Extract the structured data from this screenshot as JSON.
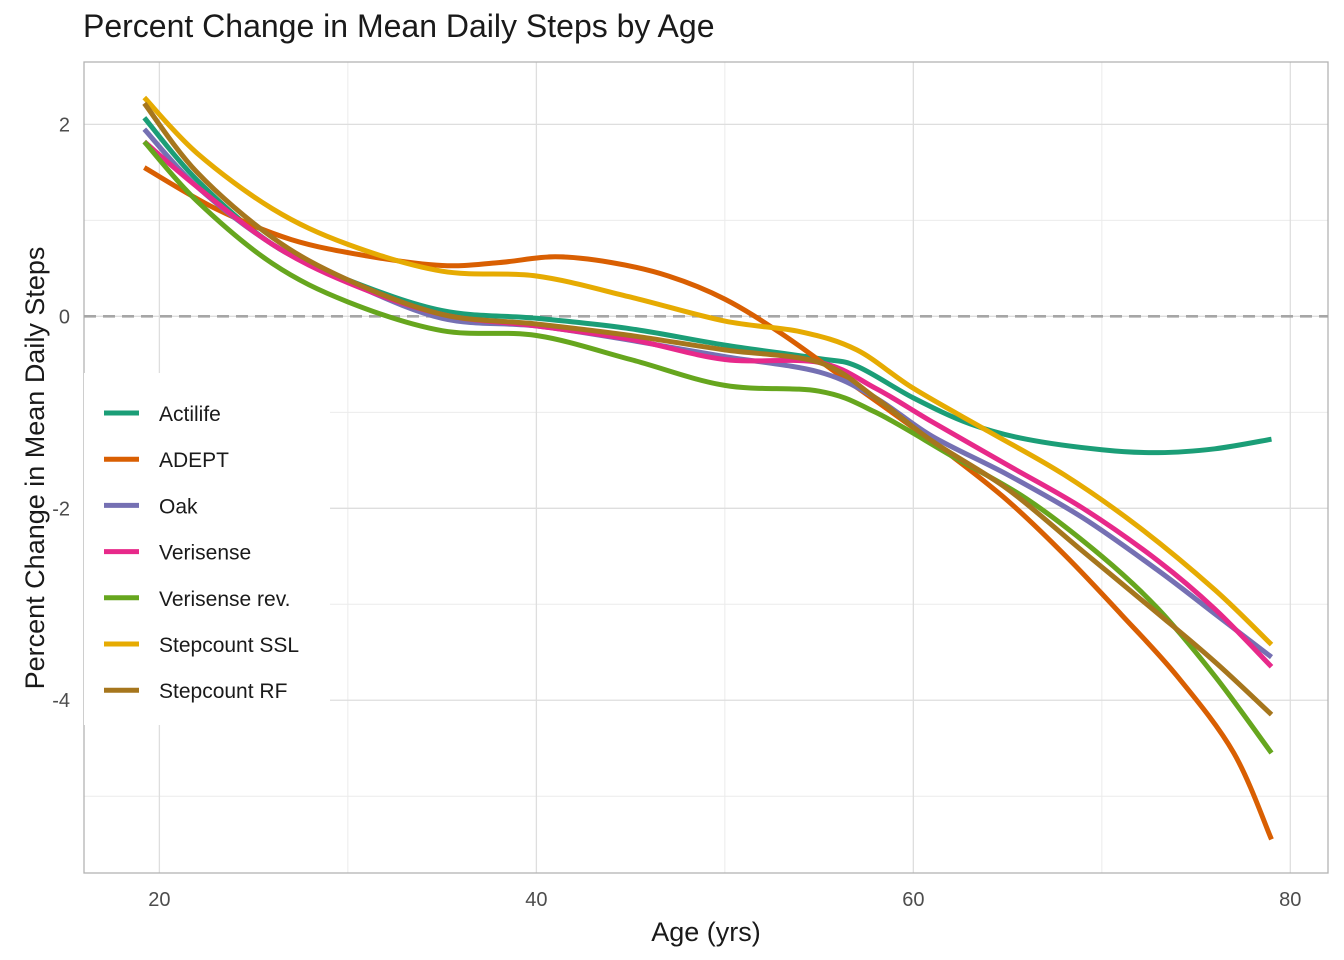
{
  "chart_data": {
    "type": "line",
    "title": "Percent Change in Mean Daily Steps by Age",
    "xlabel": "Age (yrs)",
    "ylabel": "Percent Change in Mean Daily Steps",
    "xlim": [
      16,
      82
    ],
    "ylim": [
      -5.8,
      2.65
    ],
    "x_ticks": [
      20,
      40,
      60,
      80
    ],
    "y_ticks": [
      -4,
      -2,
      0,
      2
    ],
    "grid": true,
    "reference_line": {
      "y": 0,
      "style": "dashed",
      "color": "#a6a6a6"
    },
    "legend_position": "left-middle",
    "series": [
      {
        "name": "Actilife",
        "color": "#1b9e77",
        "points": [
          [
            19.2,
            2.07
          ],
          [
            22,
            1.42
          ],
          [
            26,
            0.75
          ],
          [
            30,
            0.38
          ],
          [
            35,
            0.06
          ],
          [
            40,
            -0.02
          ],
          [
            45,
            -0.13
          ],
          [
            50,
            -0.3
          ],
          [
            55,
            -0.44
          ],
          [
            57,
            -0.52
          ],
          [
            60,
            -0.85
          ],
          [
            63,
            -1.12
          ],
          [
            66,
            -1.28
          ],
          [
            70,
            -1.39
          ],
          [
            73,
            -1.42
          ],
          [
            76,
            -1.38
          ],
          [
            79,
            -1.28
          ]
        ]
      },
      {
        "name": "ADEPT",
        "color": "#d95f02",
        "points": [
          [
            19.2,
            1.55
          ],
          [
            23,
            1.12
          ],
          [
            27,
            0.8
          ],
          [
            31,
            0.63
          ],
          [
            35,
            0.53
          ],
          [
            38,
            0.56
          ],
          [
            41,
            0.62
          ],
          [
            44,
            0.56
          ],
          [
            47,
            0.42
          ],
          [
            50,
            0.18
          ],
          [
            53,
            -0.18
          ],
          [
            56,
            -0.6
          ],
          [
            59,
            -1.02
          ],
          [
            62,
            -1.45
          ],
          [
            65,
            -1.92
          ],
          [
            68,
            -2.48
          ],
          [
            71,
            -3.1
          ],
          [
            74,
            -3.75
          ],
          [
            77,
            -4.55
          ],
          [
            79,
            -5.45
          ]
        ]
      },
      {
        "name": "Oak",
        "color": "#7570b3",
        "points": [
          [
            19.2,
            1.95
          ],
          [
            22,
            1.35
          ],
          [
            26,
            0.75
          ],
          [
            30,
            0.36
          ],
          [
            35,
            -0.02
          ],
          [
            40,
            -0.1
          ],
          [
            45,
            -0.25
          ],
          [
            50,
            -0.42
          ],
          [
            55,
            -0.58
          ],
          [
            58,
            -0.85
          ],
          [
            61,
            -1.25
          ],
          [
            65,
            -1.65
          ],
          [
            69,
            -2.1
          ],
          [
            73,
            -2.65
          ],
          [
            76,
            -3.1
          ],
          [
            79,
            -3.55
          ]
        ]
      },
      {
        "name": "Verisense",
        "color": "#e7298a",
        "points": [
          [
            19.2,
            1.82
          ],
          [
            22,
            1.35
          ],
          [
            26,
            0.75
          ],
          [
            30,
            0.35
          ],
          [
            35,
            0.02
          ],
          [
            40,
            -0.1
          ],
          [
            45,
            -0.24
          ],
          [
            50,
            -0.45
          ],
          [
            55,
            -0.48
          ],
          [
            58,
            -0.75
          ],
          [
            61,
            -1.1
          ],
          [
            65,
            -1.55
          ],
          [
            69,
            -2.0
          ],
          [
            73,
            -2.55
          ],
          [
            76,
            -3.05
          ],
          [
            79,
            -3.65
          ]
        ]
      },
      {
        "name": "Verisense rev.",
        "color": "#66a61e",
        "points": [
          [
            19.2,
            1.82
          ],
          [
            22,
            1.2
          ],
          [
            26,
            0.55
          ],
          [
            30,
            0.15
          ],
          [
            35,
            -0.15
          ],
          [
            40,
            -0.2
          ],
          [
            45,
            -0.45
          ],
          [
            50,
            -0.72
          ],
          [
            55,
            -0.78
          ],
          [
            58,
            -1.0
          ],
          [
            62,
            -1.45
          ],
          [
            66,
            -1.9
          ],
          [
            70,
            -2.5
          ],
          [
            73,
            -3.05
          ],
          [
            76,
            -3.75
          ],
          [
            79,
            -4.55
          ]
        ]
      },
      {
        "name": "Stepcount SSL",
        "color": "#e6ab02",
        "points": [
          [
            19.2,
            2.28
          ],
          [
            22,
            1.7
          ],
          [
            26,
            1.12
          ],
          [
            30,
            0.75
          ],
          [
            35,
            0.47
          ],
          [
            40,
            0.42
          ],
          [
            45,
            0.2
          ],
          [
            50,
            -0.05
          ],
          [
            54,
            -0.16
          ],
          [
            57,
            -0.35
          ],
          [
            60,
            -0.75
          ],
          [
            64,
            -1.2
          ],
          [
            68,
            -1.65
          ],
          [
            72,
            -2.2
          ],
          [
            76,
            -2.85
          ],
          [
            79,
            -3.42
          ]
        ]
      },
      {
        "name": "Stepcount RF",
        "color": "#a6761d",
        "points": [
          [
            19.2,
            2.22
          ],
          [
            22,
            1.5
          ],
          [
            26,
            0.82
          ],
          [
            30,
            0.38
          ],
          [
            35,
            0.02
          ],
          [
            40,
            -0.08
          ],
          [
            45,
            -0.2
          ],
          [
            50,
            -0.35
          ],
          [
            55,
            -0.48
          ],
          [
            58,
            -0.85
          ],
          [
            61,
            -1.3
          ],
          [
            65,
            -1.8
          ],
          [
            69,
            -2.45
          ],
          [
            73,
            -3.1
          ],
          [
            76,
            -3.6
          ],
          [
            79,
            -4.15
          ]
        ]
      }
    ]
  }
}
